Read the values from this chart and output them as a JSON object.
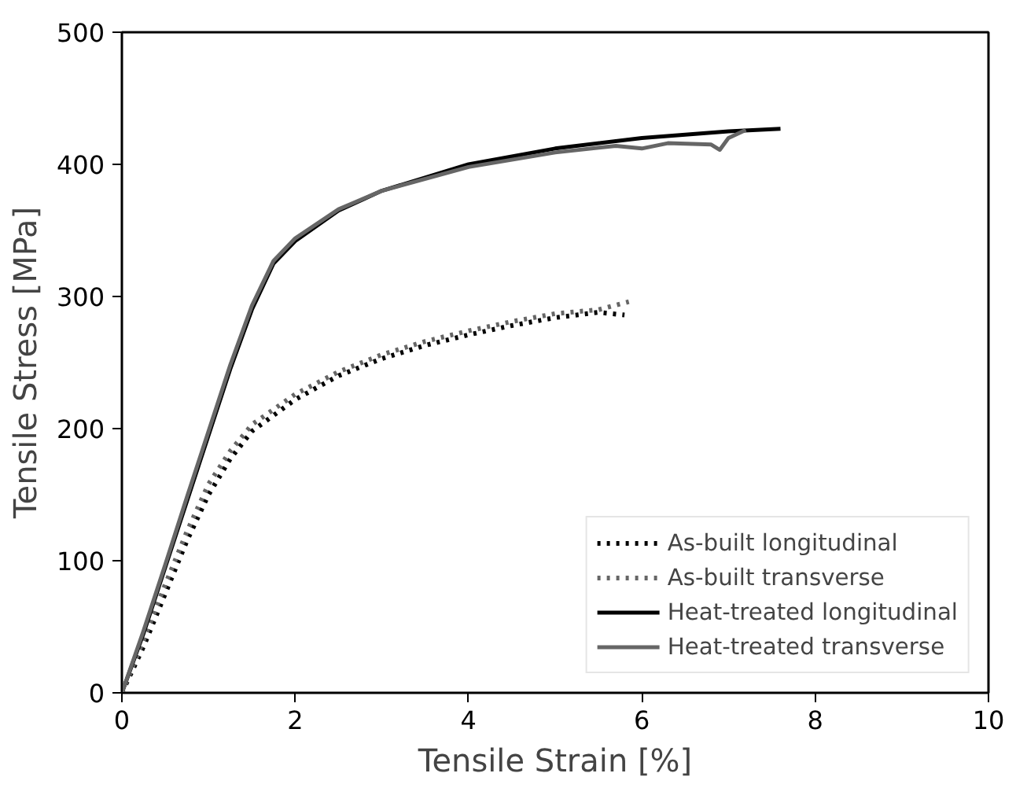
{
  "chart_data": {
    "type": "line",
    "xlabel": "Tensile Strain [%]",
    "ylabel": "Tensile Stress [MPa]",
    "xlim": [
      0,
      10
    ],
    "ylim": [
      0,
      500
    ],
    "xticks": [
      0,
      2,
      4,
      6,
      8,
      10
    ],
    "yticks": [
      0,
      100,
      200,
      300,
      400,
      500
    ],
    "legend": "bottom right",
    "grid": false,
    "series": [
      {
        "name": "As-built longitudinal",
        "color": "#000000",
        "line_style": "dotted",
        "x": [
          0,
          0.25,
          0.5,
          0.75,
          1,
          1.25,
          1.5,
          2,
          2.5,
          3,
          3.5,
          4,
          4.5,
          5,
          5.5,
          5.8
        ],
        "values": [
          0,
          35,
          75,
          115,
          150,
          177,
          198,
          222,
          240,
          253,
          263,
          271,
          278,
          284,
          288,
          286
        ]
      },
      {
        "name": "As-built transverse",
        "color": "#666666",
        "line_style": "dotted",
        "x": [
          0,
          0.25,
          0.5,
          0.75,
          1,
          1.25,
          1.5,
          2,
          2.5,
          3,
          3.5,
          4,
          4.5,
          5,
          5.5,
          5.85
        ],
        "values": [
          0,
          40,
          82,
          122,
          158,
          183,
          203,
          226,
          243,
          256,
          266,
          274,
          281,
          287,
          290,
          296
        ]
      },
      {
        "name": "Heat-treated longitudinal",
        "color": "#000000",
        "line_style": "solid",
        "x": [
          0,
          0.25,
          0.5,
          0.75,
          1,
          1.25,
          1.5,
          1.75,
          2,
          2.5,
          3,
          4,
          5,
          6,
          7,
          7.6
        ],
        "values": [
          0,
          45,
          95,
          145,
          195,
          245,
          290,
          325,
          342,
          365,
          380,
          400,
          412,
          420,
          425,
          427
        ]
      },
      {
        "name": "Heat-treated transverse",
        "color": "#666666",
        "line_style": "solid",
        "x": [
          0,
          0.25,
          0.5,
          0.75,
          1,
          1.25,
          1.5,
          1.75,
          2,
          2.5,
          3,
          4,
          5,
          5.7,
          6,
          6.3,
          6.8,
          6.9,
          7.0,
          7.2
        ],
        "values": [
          0,
          47,
          97,
          148,
          198,
          248,
          293,
          327,
          344,
          366,
          380,
          398,
          409,
          414,
          412,
          416,
          415,
          411,
          420,
          426
        ]
      }
    ]
  }
}
